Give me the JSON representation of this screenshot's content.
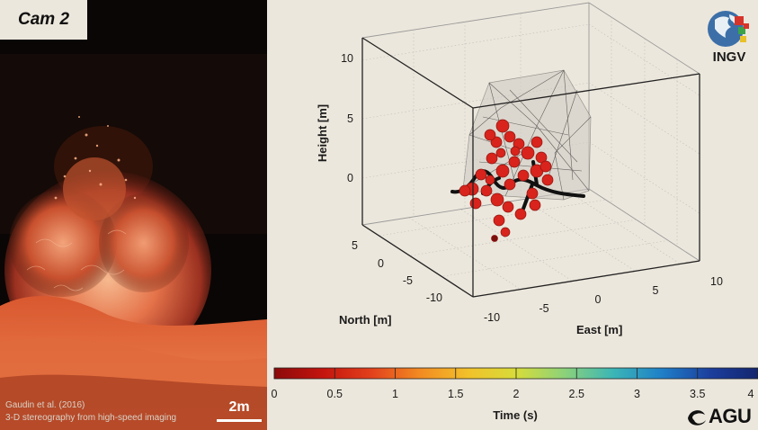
{
  "video": {
    "cam_label": "Cam 2",
    "credit_line1": "Gaudin et al. (2016)",
    "credit_line2": "3-D stereography from high-speed imaging",
    "scale_label": "2m"
  },
  "plot": {
    "axis_labels": {
      "height": "Height [m]",
      "north": "North [m]",
      "east": "East [m]"
    },
    "height_ticks": [
      "10",
      "5",
      "0"
    ],
    "north_ticks": [
      "5",
      "0",
      "-5",
      "-10"
    ],
    "east_ticks": [
      "-10",
      "-5",
      "0",
      "5",
      "10"
    ]
  },
  "colorbar": {
    "title": "Time (s)",
    "ticks": [
      "0",
      "0.5",
      "1",
      "1.5",
      "2",
      "2.5",
      "3",
      "3.5",
      "4"
    ],
    "colors": [
      "#8b0a0a",
      "#c4140e",
      "#e2401c",
      "#f28a22",
      "#f2c12a",
      "#d7dc3a",
      "#8cd27a",
      "#3cb6b6",
      "#1f80c8",
      "#1c3f9e",
      "#13256e"
    ]
  },
  "logos": {
    "ingv_text": "INGV",
    "agu_text": "AGU",
    "ingv_icon": "globe-icon",
    "agu_icon": "agu-swirl-icon"
  },
  "colors": {
    "background": "#ece7dc",
    "particle": "#d8241c",
    "particle_edge": "#8f1410",
    "trajectory": "#111111"
  }
}
